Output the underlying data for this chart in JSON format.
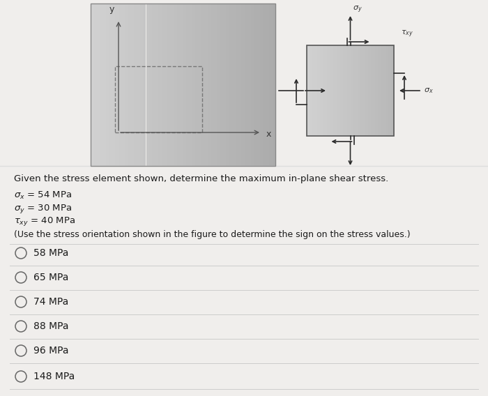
{
  "title_question": "Given the stress element shown, determine the maximum in-plane shear stress.",
  "stress_line1": "σx = 54 MPa",
  "stress_line2": "σy = 30 MPa",
  "stress_line3": "τxy = 40 MPa",
  "note": "(Use the stress orientation shown in the figure to determine the sign on the stress values.)",
  "choices": [
    "58 MPa",
    "65 MPa",
    "74 MPa",
    "88 MPa",
    "96 MPa",
    "148 MPa"
  ],
  "panel_bg": "#f0eeec",
  "left_bg_light": "#d8d6d4",
  "left_bg_dark": "#b0aeac",
  "elem_bg_light": "#d0cecb",
  "elem_bg_dark": "#b8b6b3",
  "divider_color": "#cccccc",
  "text_color": "#1a1a1a",
  "label_color": "#333333",
  "arrow_color": "#2a2a2a"
}
